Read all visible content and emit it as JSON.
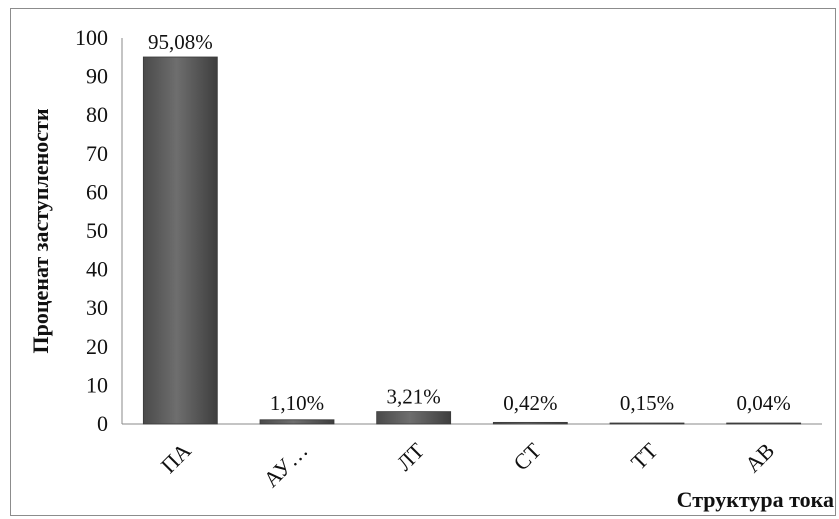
{
  "chart_data": {
    "type": "bar",
    "title": "",
    "xlabel": "Структура тока",
    "ylabel": "Проценат заступлености",
    "ylim": [
      0,
      100
    ],
    "yticks": [
      0,
      10,
      20,
      30,
      40,
      50,
      60,
      70,
      80,
      90,
      100
    ],
    "grid": false,
    "categories": [
      "ПА",
      "АУ…",
      "ЛТ",
      "СТ",
      "ТТ",
      "АВ"
    ],
    "values": [
      95.08,
      1.1,
      3.21,
      0.42,
      0.15,
      0.04
    ],
    "data_labels": [
      "95,08%",
      "1,10%",
      "3,21%",
      "0,42%",
      "0,15%",
      "0,04%"
    ],
    "bar_color": "#5c5c5c"
  }
}
